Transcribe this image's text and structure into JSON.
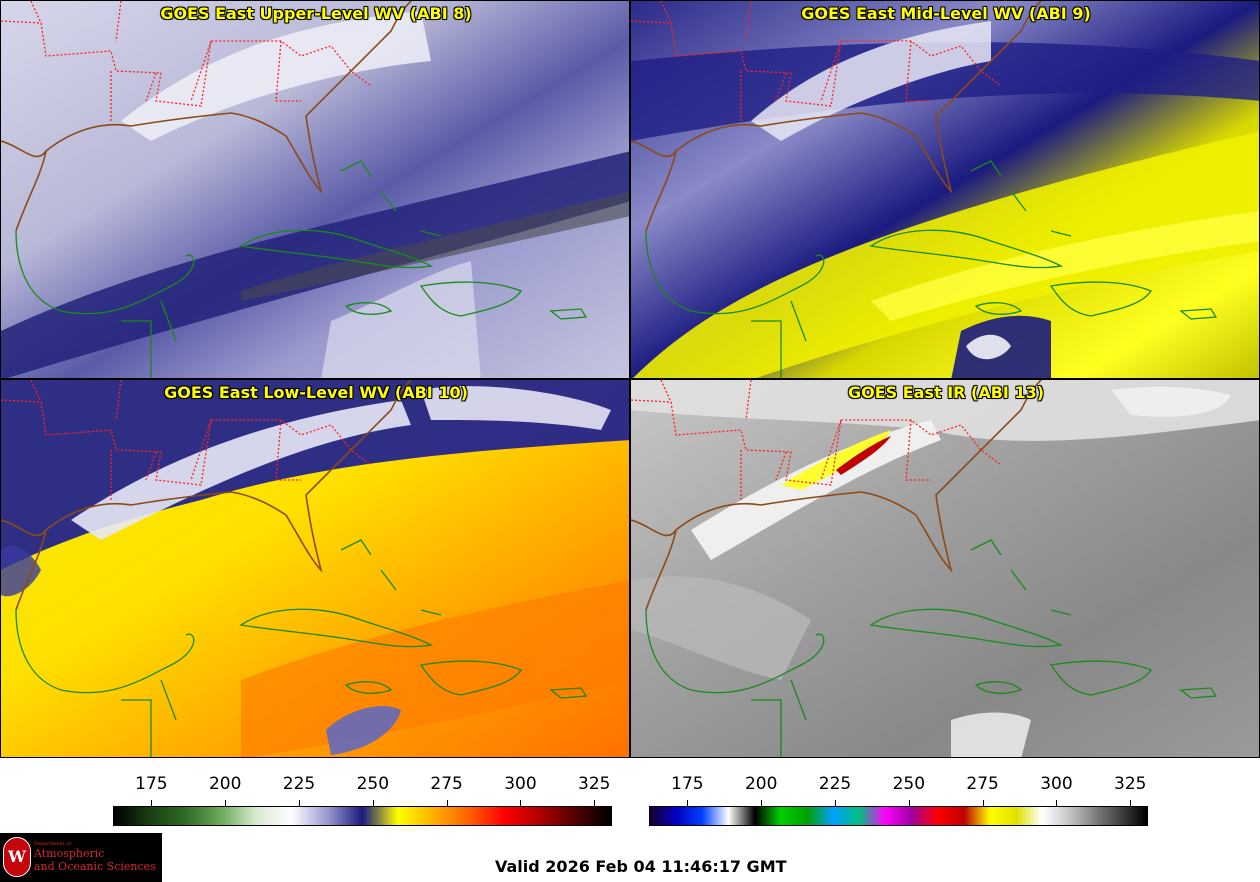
{
  "panels": [
    {
      "title": "GOES East Upper-Level WV (ABI 8)",
      "palette": "upper"
    },
    {
      "title": "GOES East Mid-Level WV (ABI 9)",
      "palette": "mid"
    },
    {
      "title": "GOES East Low-Level WV (ABI 10)",
      "palette": "low"
    },
    {
      "title": "GOES East IR (ABI 13)",
      "palette": "ir"
    }
  ],
  "colorbars": {
    "wv": {
      "ticks": [
        "175",
        "200",
        "225",
        "250",
        "275",
        "300",
        "325"
      ],
      "range": [
        162,
        331
      ],
      "stops": [
        "#000000",
        "#1a3d12",
        "#2e6b22",
        "#6aa85a",
        "#d8ead2",
        "#ffffff",
        "#9a9ad0",
        "#1a1a80",
        "#ffff00",
        "#ffb000",
        "#ff6000",
        "#ff0000",
        "#b00000",
        "#500000",
        "#000000"
      ]
    },
    "ir": {
      "ticks": [
        "175",
        "200",
        "225",
        "250",
        "275",
        "300",
        "325"
      ],
      "range": [
        162,
        331
      ],
      "stops": [
        "#1a0030",
        "#0000c0",
        "#0040ff",
        "#ffffff",
        "#000000",
        "#00d000",
        "#00a000",
        "#00a0ff",
        "#00c080",
        "#ff00ff",
        "#a000a0",
        "#ff0000",
        "#c00000",
        "#ffff00",
        "#e0e000",
        "#ffffff",
        "#c8c8c8",
        "#808080",
        "#404040",
        "#000000"
      ]
    }
  },
  "colors": {
    "state_borders": "#ff2020",
    "coastline_us": "#8b4a16",
    "coastline_intl": "#1a8a1a",
    "title_text": "#ffff00"
  },
  "logo": {
    "seal": "W",
    "dept": "Department of",
    "line1": "Atmospheric",
    "line2": "and Oceanic Sciences"
  },
  "valid_text": "Valid 2026 Feb 04 11:46:17 GMT"
}
